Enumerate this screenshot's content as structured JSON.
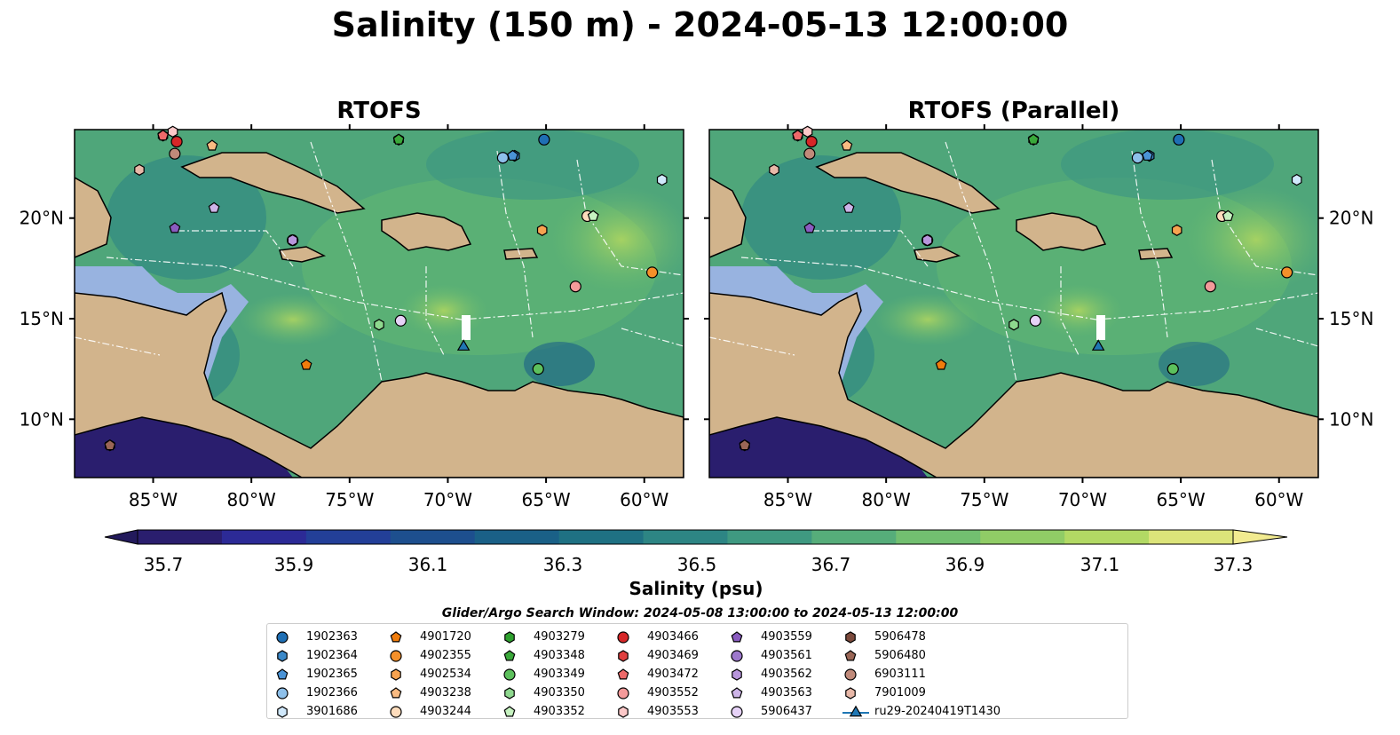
{
  "figure": {
    "title": "Salinity (150 m) - 2024-05-13 12:00:00",
    "panels": [
      {
        "title": "RTOFS"
      },
      {
        "title": "RTOFS (Parallel)"
      }
    ],
    "lat_ticks": [
      "20°N",
      "15°N",
      "10°N"
    ],
    "lon_ticks": [
      "85°W",
      "80°W",
      "75°W",
      "70°W",
      "65°W",
      "60°W"
    ],
    "colorbar": {
      "label": "Salinity (psu)",
      "ticks": [
        "35.7",
        "35.9",
        "36.1",
        "36.3",
        "36.5",
        "36.7",
        "36.9",
        "37.1",
        "37.3"
      ],
      "colors": [
        "#2a1e6e",
        "#2c2a96",
        "#233f98",
        "#1d4f8e",
        "#1a6087",
        "#1f7183",
        "#2d8584",
        "#3f9981",
        "#56ad7a",
        "#72bf70",
        "#90cc66",
        "#b2d964",
        "#dce47a"
      ]
    },
    "search_window": "Glider/Argo Search Window: 2024-05-08 13:00:00 to 2024-05-13 12:00:00",
    "legend": [
      {
        "id": "1902363",
        "color": "#1f6fb4",
        "shape": "circle"
      },
      {
        "id": "1902364",
        "color": "#3a88c8",
        "shape": "hexagon"
      },
      {
        "id": "1902365",
        "color": "#4a93d6",
        "shape": "pentagon"
      },
      {
        "id": "1902366",
        "color": "#8ec0ea",
        "shape": "circle"
      },
      {
        "id": "3901686",
        "color": "#d0e8fb",
        "shape": "hexagon"
      },
      {
        "id": "4901720",
        "color": "#f07c0c",
        "shape": "pentagon"
      },
      {
        "id": "4902355",
        "color": "#f5902a",
        "shape": "circle"
      },
      {
        "id": "4902534",
        "color": "#f7a350",
        "shape": "hexagon"
      },
      {
        "id": "4903238",
        "color": "#f9bb82",
        "shape": "pentagon"
      },
      {
        "id": "4903244",
        "color": "#fddcbc",
        "shape": "circle"
      },
      {
        "id": "4903279",
        "color": "#2ea02e",
        "shape": "hexagon"
      },
      {
        "id": "4903348",
        "color": "#3aa83a",
        "shape": "pentagon"
      },
      {
        "id": "4903349",
        "color": "#5cc05c",
        "shape": "circle"
      },
      {
        "id": "4903350",
        "color": "#8ed88e",
        "shape": "hexagon"
      },
      {
        "id": "4903352",
        "color": "#c6f2c0",
        "shape": "pentagon"
      },
      {
        "id": "4903466",
        "color": "#d62728",
        "shape": "circle"
      },
      {
        "id": "4903469",
        "color": "#e04040",
        "shape": "hexagon"
      },
      {
        "id": "4903472",
        "color": "#ee6a6a",
        "shape": "pentagon"
      },
      {
        "id": "4903552",
        "color": "#f49a9a",
        "shape": "circle"
      },
      {
        "id": "4903553",
        "color": "#fcc8c8",
        "shape": "hexagon"
      },
      {
        "id": "4903559",
        "color": "#8a5cc0",
        "shape": "pentagon"
      },
      {
        "id": "4903561",
        "color": "#9d78cc",
        "shape": "circle"
      },
      {
        "id": "4903562",
        "color": "#b896dc",
        "shape": "hexagon"
      },
      {
        "id": "4903563",
        "color": "#cdb4e8",
        "shape": "pentagon"
      },
      {
        "id": "5906437",
        "color": "#e6d2f7",
        "shape": "circle"
      },
      {
        "id": "5906478",
        "color": "#7b4a3c",
        "shape": "hexagon"
      },
      {
        "id": "5906480",
        "color": "#9a6656",
        "shape": "pentagon"
      },
      {
        "id": "6903111",
        "color": "#c08a7a",
        "shape": "circle"
      },
      {
        "id": "7901009",
        "color": "#e8b8a8",
        "shape": "hexagon"
      },
      {
        "id": "ru29-20240419T1430",
        "color": "#1f77b4",
        "shape": "triangle-line"
      }
    ],
    "markers": [
      {
        "id": "1902363",
        "lon": -65.1,
        "lat": 23.9
      },
      {
        "id": "1902364",
        "lon": -66.6,
        "lat": 23.1
      },
      {
        "id": "1902365",
        "lon": -66.7,
        "lat": 23.1
      },
      {
        "id": "1902366",
        "lon": -67.2,
        "lat": 23.0
      },
      {
        "id": "3901686",
        "lon": -59.1,
        "lat": 21.9
      },
      {
        "id": "4901720",
        "lon": -77.2,
        "lat": 12.7
      },
      {
        "id": "4902355",
        "lon": -59.6,
        "lat": 17.3
      },
      {
        "id": "4902534",
        "lon": -65.2,
        "lat": 19.4
      },
      {
        "id": "4903238",
        "lon": -82.0,
        "lat": 23.6
      },
      {
        "id": "4903244",
        "lon": -62.9,
        "lat": 20.1
      },
      {
        "id": "4903279",
        "lon": -72.5,
        "lat": 23.9
      },
      {
        "id": "4903348",
        "lon": -72.5,
        "lat": 23.9
      },
      {
        "id": "4903349",
        "lon": -65.4,
        "lat": 12.5
      },
      {
        "id": "4903350",
        "lon": -73.5,
        "lat": 14.7
      },
      {
        "id": "4903352",
        "lon": -62.6,
        "lat": 20.1
      },
      {
        "id": "4903466",
        "lon": -83.8,
        "lat": 23.8
      },
      {
        "id": "4903469",
        "lon": -84.5,
        "lat": 24.1
      },
      {
        "id": "4903472",
        "lon": -84.5,
        "lat": 24.1
      },
      {
        "id": "4903552",
        "lon": -63.5,
        "lat": 16.6
      },
      {
        "id": "4903553",
        "lon": -84.0,
        "lat": 24.3
      },
      {
        "id": "4903559",
        "lon": -83.9,
        "lat": 19.5
      },
      {
        "id": "4903561",
        "lon": -77.9,
        "lat": 18.9
      },
      {
        "id": "4903562",
        "lon": -77.9,
        "lat": 18.9
      },
      {
        "id": "4903563",
        "lon": -81.9,
        "lat": 20.5
      },
      {
        "id": "5906437",
        "lon": -72.4,
        "lat": 14.9
      },
      {
        "id": "5906478",
        "lon": -87.2,
        "lat": 8.7
      },
      {
        "id": "5906480",
        "lon": -87.2,
        "lat": 8.7
      },
      {
        "id": "6903111",
        "lon": -83.9,
        "lat": 23.2
      },
      {
        "id": "7901009",
        "lon": -85.7,
        "lat": 22.4
      },
      {
        "id": "ru29-20240419T1430",
        "lon": -69.2,
        "lat": 13.6
      }
    ]
  }
}
